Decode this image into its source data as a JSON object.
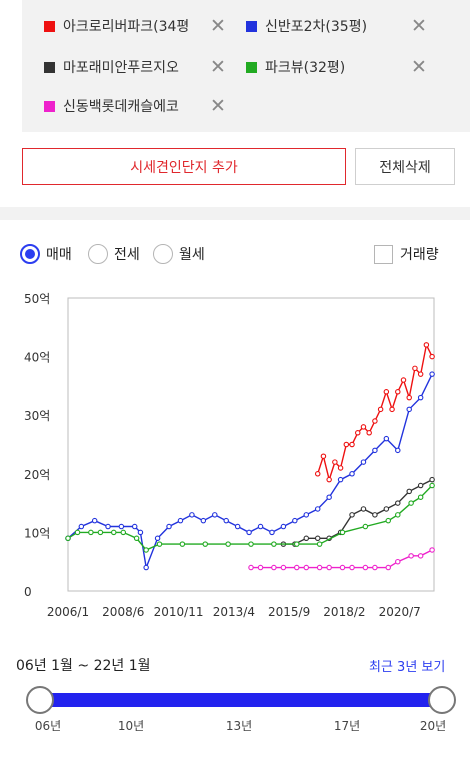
{
  "compare_items": [
    {
      "name": "아크로리버파크(34평",
      "color": "#ee1111"
    },
    {
      "name": "신반포2차(35평)",
      "color": "#2233dd"
    },
    {
      "name": "마포래미안푸르지오",
      "color": "#333333"
    },
    {
      "name": "파크뷰(32평)",
      "color": "#22aa22"
    },
    {
      "name": "신동백롯데캐슬에코",
      "color": "#ee22cc"
    }
  ],
  "remove_icon": "close-icon",
  "buttons": {
    "add": "시세견인단지 추가",
    "delete_all": "전체삭제"
  },
  "price_types": [
    {
      "label": "매매",
      "selected": true
    },
    {
      "label": "전세",
      "selected": false
    },
    {
      "label": "월세",
      "selected": false
    }
  ],
  "volume_toggle": {
    "label": "거래량",
    "checked": false
  },
  "chart_data": {
    "type": "line",
    "ylabel_unit": "억",
    "y_ticks": [
      "50억",
      "40억",
      "30억",
      "20억",
      "10억",
      "0"
    ],
    "ylim": [
      0,
      50
    ],
    "x_ticks": [
      "2006/1",
      "2008/6",
      "2010/11",
      "2013/4",
      "2015/9",
      "2018/2",
      "2020/7"
    ],
    "xlim": [
      "2006-01",
      "2022-01"
    ],
    "series": [
      {
        "name": "아크로리버파크(34평",
        "color": "#ee1111",
        "x": [
          "2016-12",
          "2017-03",
          "2017-06",
          "2017-09",
          "2017-12",
          "2018-03",
          "2018-06",
          "2018-09",
          "2018-12",
          "2019-03",
          "2019-06",
          "2019-09",
          "2019-12",
          "2020-03",
          "2020-06",
          "2020-09",
          "2020-12",
          "2021-03",
          "2021-06",
          "2021-09",
          "2021-12"
        ],
        "y": [
          20,
          23,
          19,
          22,
          21,
          25,
          25,
          27,
          28,
          27,
          29,
          31,
          34,
          31,
          34,
          36,
          33,
          38,
          37,
          42,
          40
        ]
      },
      {
        "name": "신반포2차(35평)",
        "color": "#2233dd",
        "x": [
          "2006-01",
          "2006-08",
          "2007-03",
          "2007-10",
          "2008-05",
          "2008-12",
          "2009-03",
          "2009-06",
          "2009-12",
          "2010-06",
          "2010-12",
          "2011-06",
          "2011-12",
          "2012-06",
          "2012-12",
          "2013-06",
          "2013-12",
          "2014-06",
          "2014-12",
          "2015-06",
          "2015-12",
          "2016-06",
          "2016-12",
          "2017-06",
          "2017-12",
          "2018-06",
          "2018-12",
          "2019-06",
          "2019-12",
          "2020-06",
          "2020-12",
          "2021-06",
          "2021-12"
        ],
        "y": [
          9,
          11,
          12,
          11,
          11,
          11,
          10,
          4,
          9,
          11,
          12,
          13,
          12,
          13,
          12,
          11,
          10,
          11,
          10,
          11,
          12,
          13,
          14,
          16,
          19,
          20,
          22,
          24,
          26,
          24,
          31,
          33,
          37
        ]
      },
      {
        "name": "마포래미안푸르지오",
        "color": "#333333",
        "x": [
          "2015-06",
          "2015-12",
          "2016-06",
          "2016-12",
          "2017-06",
          "2017-12",
          "2018-06",
          "2018-12",
          "2019-06",
          "2019-12",
          "2020-06",
          "2020-12",
          "2021-06",
          "2021-12"
        ],
        "y": [
          8,
          8,
          9,
          9,
          9,
          10,
          13,
          14,
          13,
          14,
          15,
          17,
          18,
          19
        ]
      },
      {
        "name": "파크뷰(32평)",
        "color": "#22aa22",
        "x": [
          "2006-01",
          "2006-06",
          "2007-01",
          "2007-06",
          "2008-01",
          "2008-06",
          "2009-01",
          "2009-06",
          "2010-01",
          "2011-01",
          "2012-01",
          "2013-01",
          "2014-01",
          "2015-01",
          "2016-01",
          "2017-01",
          "2018-01",
          "2019-01",
          "2020-01",
          "2020-06",
          "2021-01",
          "2021-06",
          "2021-12"
        ],
        "y": [
          9,
          10,
          10,
          10,
          10,
          10,
          9,
          7,
          8,
          8,
          8,
          8,
          8,
          8,
          8,
          8,
          10,
          11,
          12,
          13,
          15,
          16,
          18
        ]
      },
      {
        "name": "신동백롯데캐슬에코",
        "color": "#ee22cc",
        "x": [
          "2014-01",
          "2014-06",
          "2015-01",
          "2015-06",
          "2016-01",
          "2016-06",
          "2017-01",
          "2017-06",
          "2018-01",
          "2018-06",
          "2019-01",
          "2019-06",
          "2020-01",
          "2020-06",
          "2021-01",
          "2021-06",
          "2021-12"
        ],
        "y": [
          4,
          4,
          4,
          4,
          4,
          4,
          4,
          4,
          4,
          4,
          4,
          4,
          4,
          5,
          6,
          6,
          7
        ]
      }
    ]
  },
  "range": {
    "text": "06년 1월 ~ 22년 1월",
    "recent_link": "최근 3년 보기"
  },
  "slider": {
    "ticks": [
      "06년",
      "10년",
      "13년",
      "17년",
      "20년"
    ],
    "start": 0.0,
    "end": 1.0
  }
}
